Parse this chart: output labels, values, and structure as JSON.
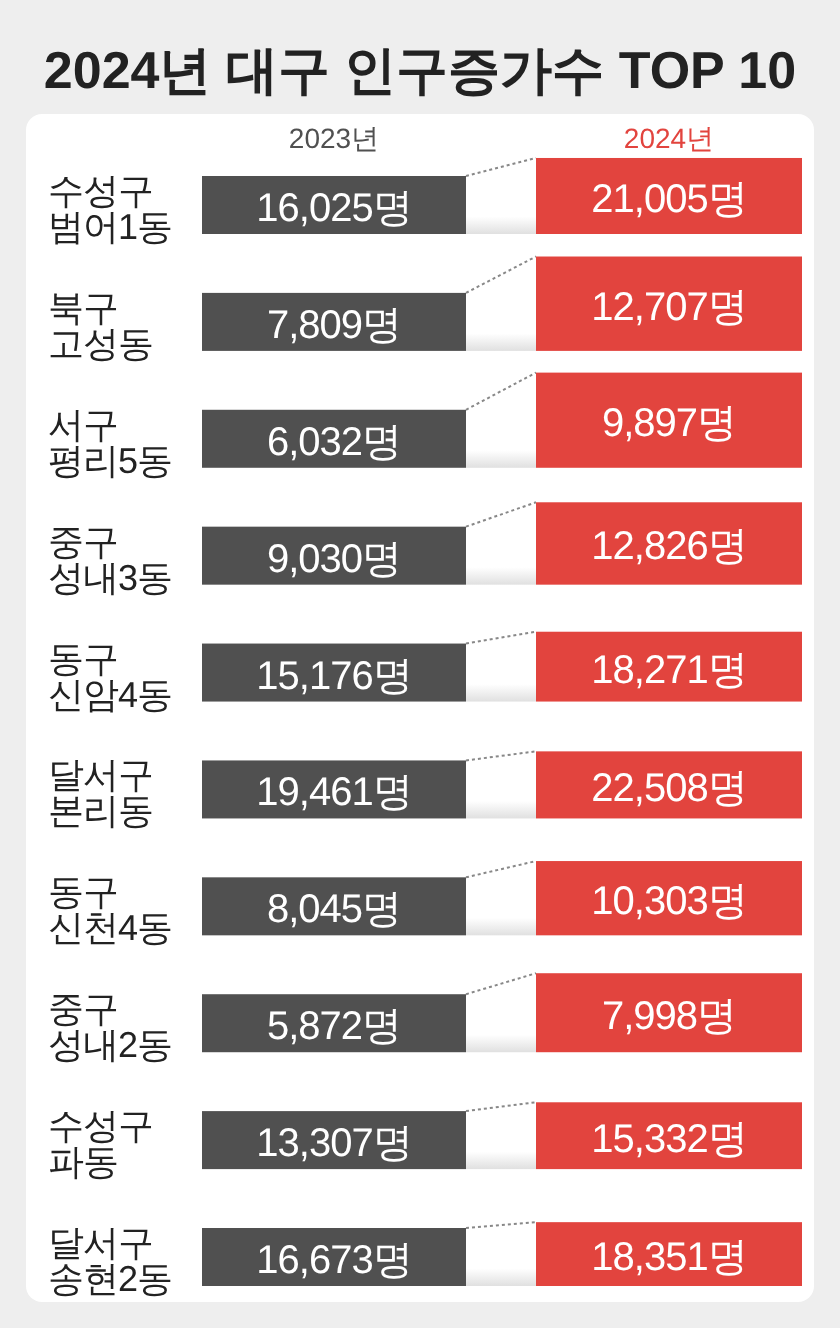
{
  "chart_data": {
    "type": "other",
    "title": "2024년 대구 인구증가수 TOP 10",
    "categories": [
      "수성구 범어1동",
      "북구 고성동",
      "서구 평리5동",
      "중구 성내3동",
      "동구 신암4동",
      "달서구 본리동",
      "동구 신천4동",
      "중구 성내2동",
      "수성구 파동",
      "달서구 송현2동"
    ],
    "series": [
      {
        "name": "2023년",
        "color": "#505050",
        "values": [
          16025,
          7809,
          6032,
          9030,
          15176,
          19461,
          8045,
          5872,
          13307,
          16673
        ],
        "value_labels": [
          "16,025명",
          "7,809명",
          "6,032명",
          "9,030명",
          "15,176명",
          "19,461명",
          "8,045명",
          "5,872명",
          "13,307명",
          "16,673명"
        ]
      },
      {
        "name": "2024년",
        "color": "#e2443e",
        "values": [
          21005,
          12707,
          9897,
          12826,
          18271,
          22508,
          10303,
          7998,
          15332,
          18351
        ],
        "value_labels": [
          "21,005명",
          "12,707명",
          "9,897명",
          "12,826명",
          "18,271명",
          "22,508명",
          "10,303명",
          "7,998명",
          "15,332명",
          "18,351명"
        ]
      }
    ]
  }
}
